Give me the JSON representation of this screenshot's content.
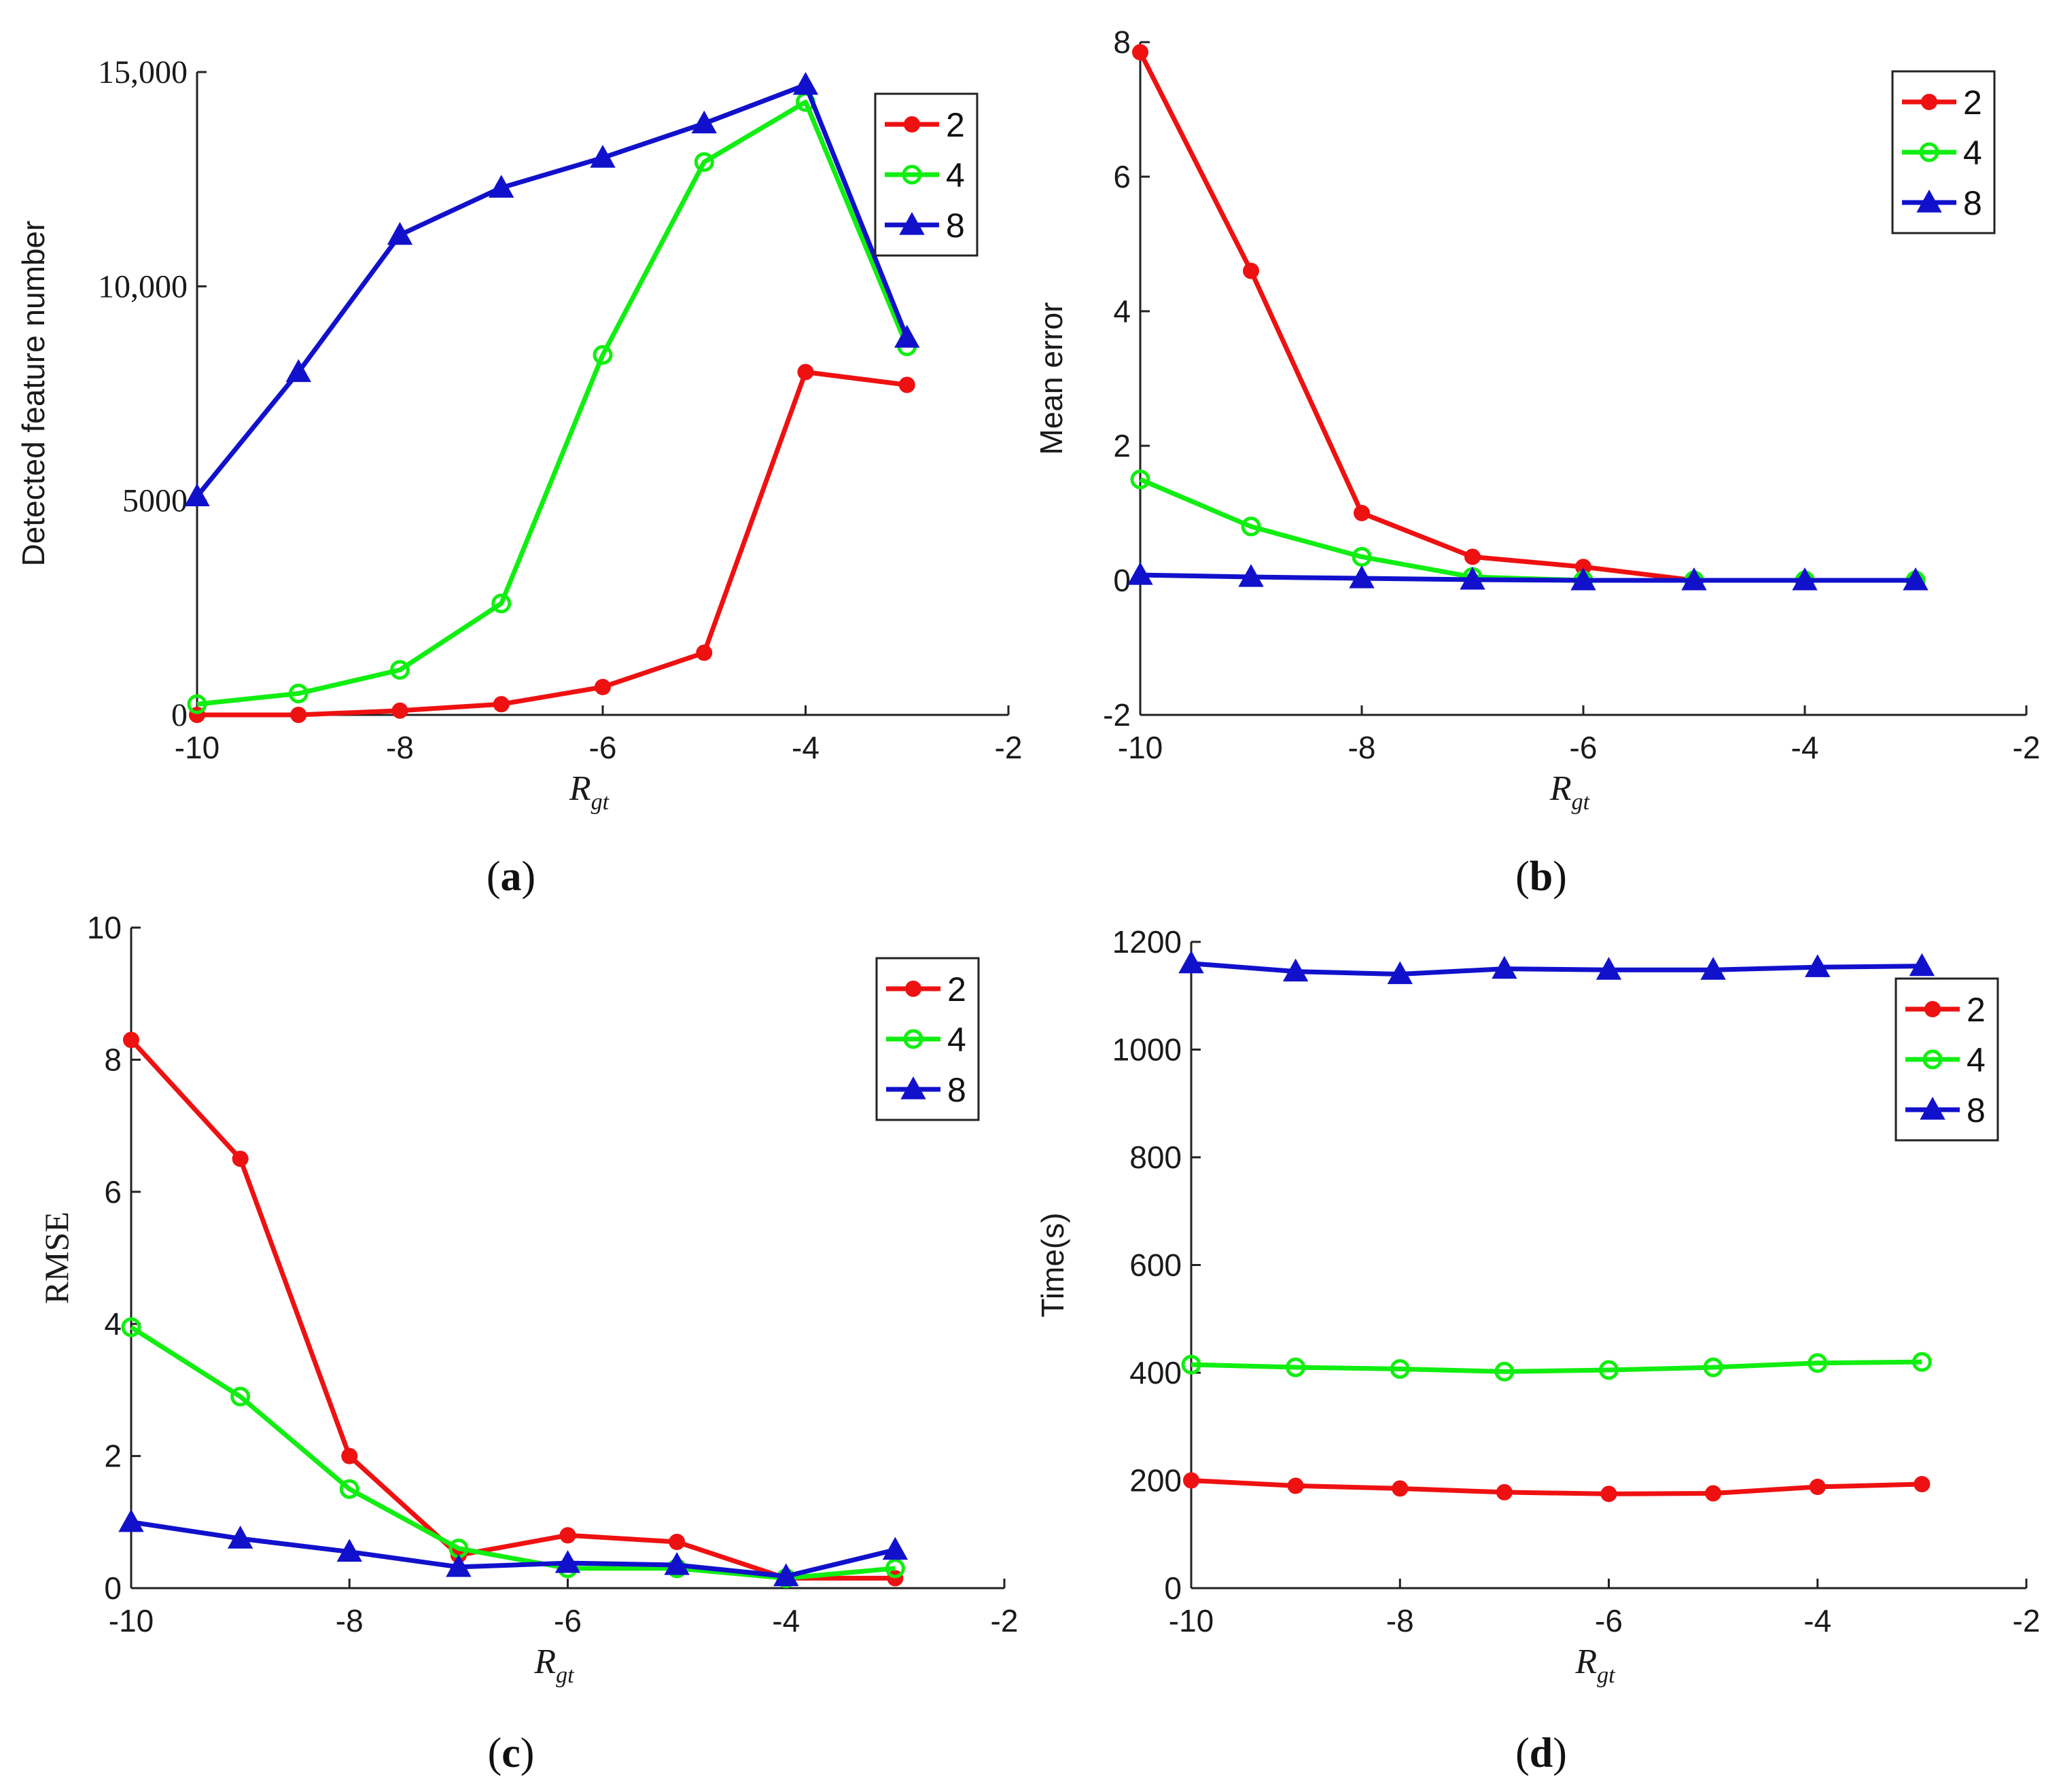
{
  "figure": {
    "panel_labels": {
      "a": {
        "open": "(",
        "letter": "a",
        "close": ")"
      },
      "b": {
        "open": "(",
        "letter": "b",
        "close": ")"
      },
      "c": {
        "open": "(",
        "letter": "c",
        "close": ")"
      },
      "d": {
        "open": "(",
        "letter": "d",
        "close": ")"
      }
    }
  },
  "colors": {
    "2": "#ee1111",
    "4": "#11ee11",
    "8": "#1111cc"
  },
  "chart_data": [
    {
      "id": "a",
      "type": "line",
      "panel_label": "(a)",
      "xlabel": "R",
      "xlabel_sub": "gt",
      "ylabel": "Detected feature number",
      "xlim": [
        -10,
        -2
      ],
      "ylim": [
        0,
        15000
      ],
      "xticks": [
        -10,
        -8,
        -6,
        -4,
        -2
      ],
      "xtick_labels": [
        "-10",
        "-8",
        "-6",
        "-4",
        "-2"
      ],
      "yticks": [
        0,
        5000,
        10000,
        15000
      ],
      "ytick_labels": [
        "0",
        "5000",
        "10,000",
        "15,000"
      ],
      "tick_font": "serif",
      "legend": {
        "position": "top-right",
        "entries": [
          "2",
          "4",
          "8"
        ]
      },
      "x": [
        -10,
        -9,
        -8,
        -7,
        -6,
        -5,
        -4,
        -3
      ],
      "series": [
        {
          "name": "2",
          "color": "#ee1111",
          "marker": "dot",
          "values": [
            0,
            0,
            100,
            250,
            650,
            1450,
            8000,
            7700
          ]
        },
        {
          "name": "4",
          "color": "#11ee11",
          "marker": "circle",
          "values": [
            250,
            500,
            1050,
            2600,
            8400,
            12900,
            14300,
            8600
          ]
        },
        {
          "name": "8",
          "color": "#1111cc",
          "marker": "triangle",
          "values": [
            5100,
            8000,
            11200,
            12300,
            13000,
            13800,
            14700,
            8800
          ]
        }
      ]
    },
    {
      "id": "b",
      "type": "line",
      "panel_label": "(b)",
      "xlabel": "R",
      "xlabel_sub": "gt",
      "ylabel": "Mean error",
      "xlim": [
        -10,
        -2
      ],
      "ylim": [
        -2,
        8
      ],
      "xticks": [
        -10,
        -8,
        -6,
        -4,
        -2
      ],
      "xtick_labels": [
        "-10",
        "-8",
        "-6",
        "-4",
        "-2"
      ],
      "yticks": [
        -2,
        0,
        2,
        4,
        6,
        8
      ],
      "ytick_labels": [
        "-2",
        "0",
        "2",
        "4",
        "6",
        "8"
      ],
      "tick_font": "sans",
      "legend": {
        "position": "top-right",
        "entries": [
          "2",
          "4",
          "8"
        ]
      },
      "x": [
        -10,
        -9,
        -8,
        -7,
        -6,
        -5,
        -4,
        -3
      ],
      "series": [
        {
          "name": "2",
          "color": "#ee1111",
          "marker": "dot",
          "values": [
            7.85,
            4.6,
            1.0,
            0.35,
            0.2,
            0.0,
            0.0,
            0.0
          ]
        },
        {
          "name": "4",
          "color": "#11ee11",
          "marker": "circle",
          "values": [
            1.5,
            0.8,
            0.35,
            0.05,
            0.0,
            0.0,
            0.0,
            0.0
          ]
        },
        {
          "name": "8",
          "color": "#1111cc",
          "marker": "triangle",
          "values": [
            0.08,
            0.05,
            0.03,
            0.01,
            0.0,
            0.0,
            0.0,
            0.0
          ]
        }
      ]
    },
    {
      "id": "c",
      "type": "line",
      "panel_label": "(c)",
      "xlabel": "R",
      "xlabel_sub": "gt",
      "ylabel": "RMSE",
      "xlim": [
        -10,
        -2
      ],
      "ylim": [
        0,
        10
      ],
      "xticks": [
        -10,
        -8,
        -6,
        -4,
        -2
      ],
      "xtick_labels": [
        "-10",
        "-8",
        "-6",
        "-4",
        "-2"
      ],
      "yticks": [
        0,
        2,
        4,
        6,
        8,
        10
      ],
      "ytick_labels": [
        "0",
        "2",
        "4",
        "6",
        "8",
        "10"
      ],
      "tick_font": "sans",
      "legend": {
        "position": "top-right",
        "entries": [
          "2",
          "4",
          "8"
        ]
      },
      "x": [
        -10,
        -9,
        -8,
        -7,
        -6,
        -5,
        -4,
        -3
      ],
      "series": [
        {
          "name": "2",
          "color": "#ee1111",
          "marker": "dot",
          "values": [
            8.3,
            6.5,
            2.0,
            0.5,
            0.8,
            0.7,
            0.15,
            0.15
          ]
        },
        {
          "name": "4",
          "color": "#11ee11",
          "marker": "circle",
          "values": [
            3.95,
            2.9,
            1.5,
            0.6,
            0.3,
            0.3,
            0.15,
            0.3
          ]
        },
        {
          "name": "8",
          "color": "#1111cc",
          "marker": "triangle",
          "values": [
            1.0,
            0.75,
            0.55,
            0.32,
            0.38,
            0.35,
            0.18,
            0.58
          ]
        }
      ]
    },
    {
      "id": "d",
      "type": "line",
      "panel_label": "(d)",
      "xlabel": "R",
      "xlabel_sub": "gt",
      "ylabel": "Time(s)",
      "xlim": [
        -10,
        -2
      ],
      "ylim": [
        0,
        1200
      ],
      "xticks": [
        -10,
        -8,
        -6,
        -4,
        -2
      ],
      "xtick_labels": [
        "-10",
        "-8",
        "-6",
        "-4",
        "-2"
      ],
      "yticks": [
        0,
        200,
        400,
        600,
        800,
        1000,
        1200
      ],
      "ytick_labels": [
        "0",
        "200",
        "400",
        "600",
        "800",
        "1000",
        "1200"
      ],
      "tick_font": "sans",
      "legend": {
        "position": "top-right",
        "entries": [
          "2",
          "4",
          "8"
        ]
      },
      "x": [
        -10,
        -9,
        -8,
        -7,
        -6,
        -5,
        -4,
        -3
      ],
      "series": [
        {
          "name": "2",
          "color": "#ee1111",
          "marker": "dot",
          "values": [
            200,
            190,
            185,
            178,
            175,
            176,
            188,
            193
          ]
        },
        {
          "name": "4",
          "color": "#11ee11",
          "marker": "circle",
          "values": [
            415,
            410,
            407,
            402,
            405,
            410,
            418,
            420
          ]
        },
        {
          "name": "8",
          "color": "#1111cc",
          "marker": "triangle",
          "values": [
            1160,
            1145,
            1140,
            1150,
            1148,
            1148,
            1153,
            1155
          ]
        }
      ]
    }
  ]
}
